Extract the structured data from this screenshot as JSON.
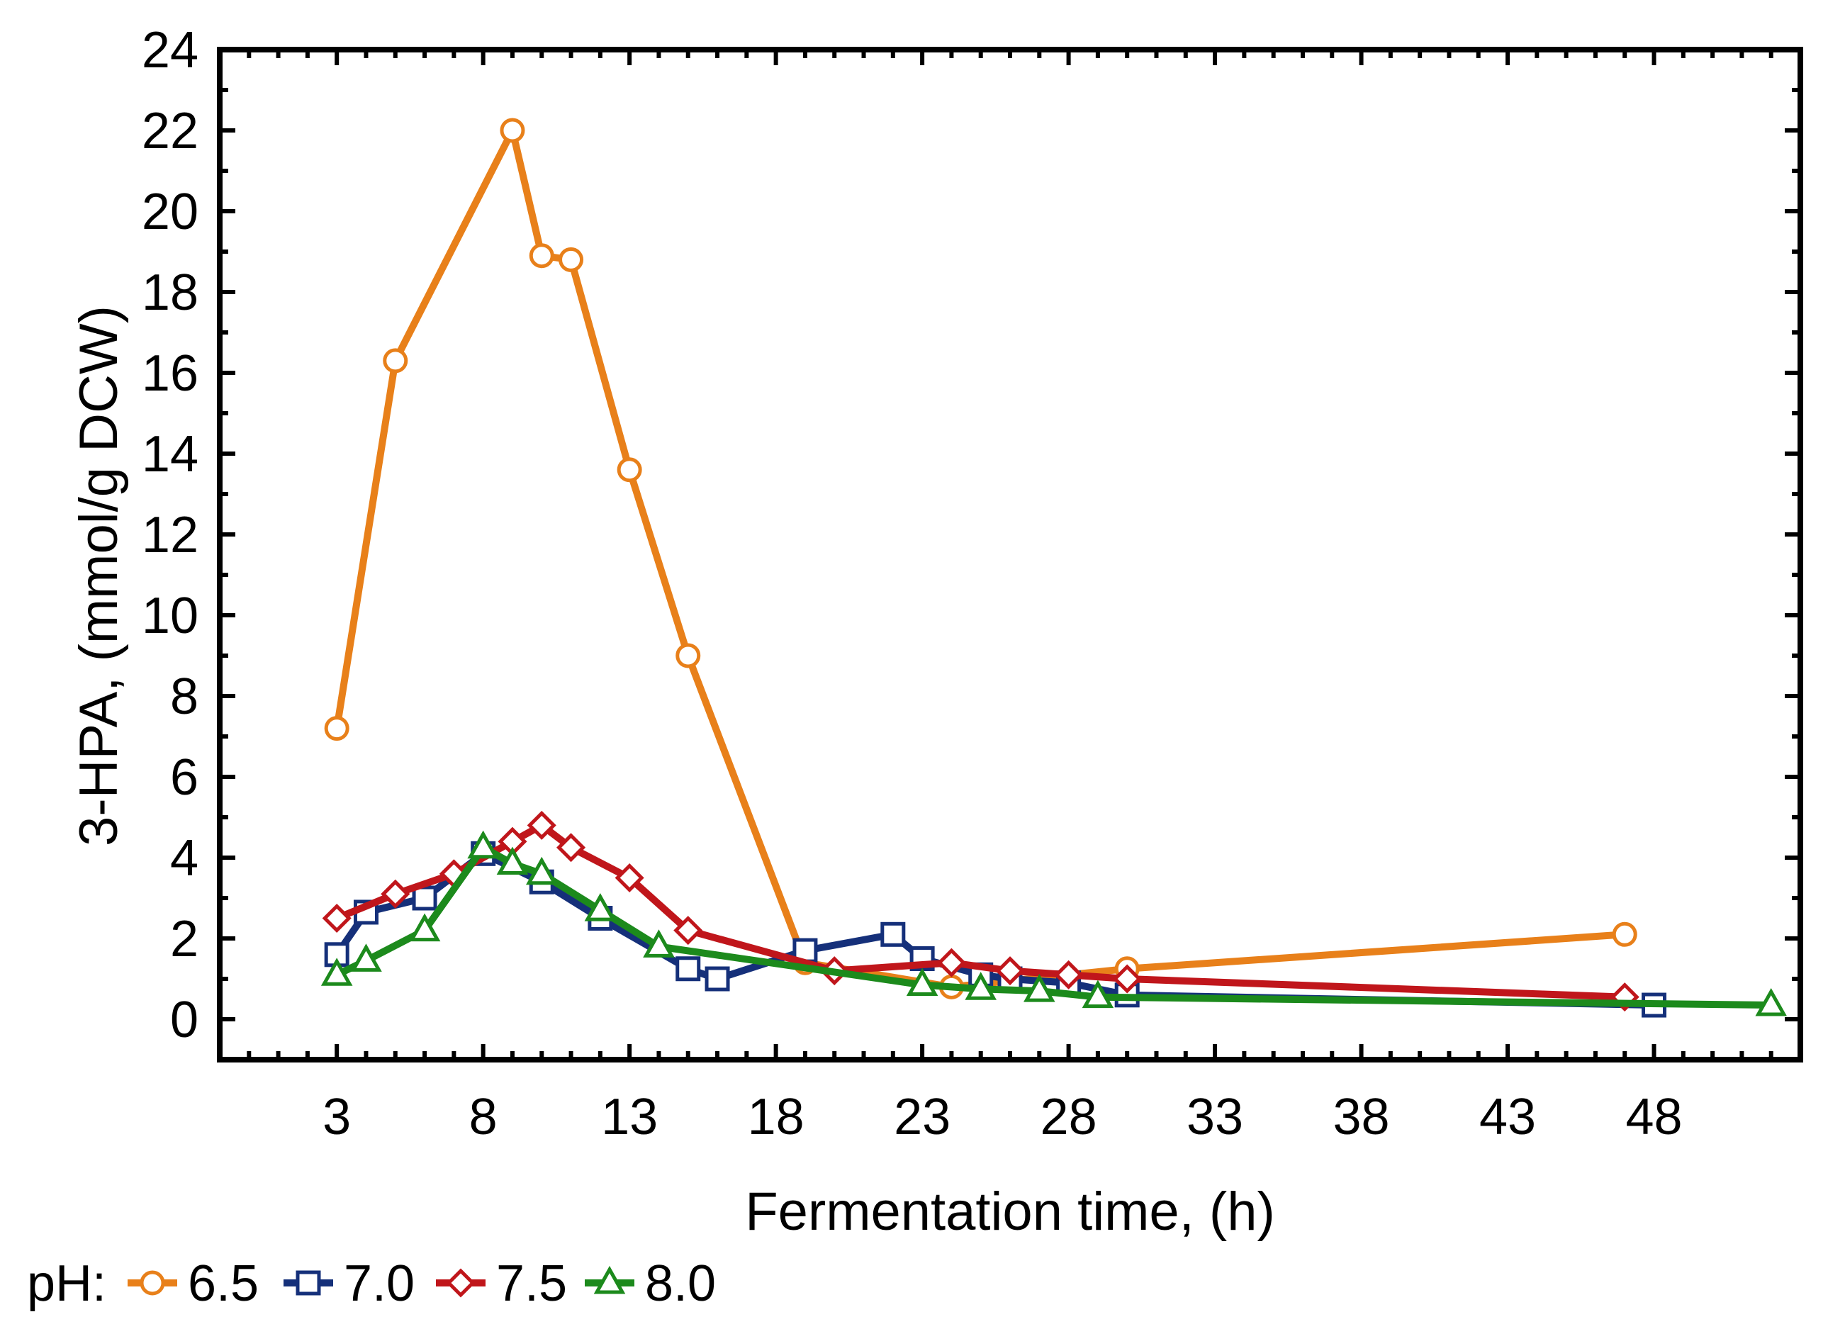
{
  "chart_data": {
    "type": "line",
    "title": "",
    "xlabel": "Fermentation time, (h)",
    "ylabel": "3-HPA, (mmol/g DCW)",
    "xlim": [
      -1,
      53
    ],
    "ylim": [
      -1,
      24
    ],
    "xticks": [
      3,
      8,
      13,
      18,
      23,
      28,
      33,
      38,
      43,
      48
    ],
    "yticks": [
      0,
      2,
      4,
      6,
      8,
      10,
      12,
      14,
      16,
      18,
      20,
      22,
      24
    ],
    "legend_title": "pH:",
    "legend_position": "bottom-left",
    "series": [
      {
        "name": "6.5",
        "color": "#E8801A",
        "marker": "circle",
        "x": [
          3,
          5,
          9,
          10,
          11,
          13,
          15,
          19,
          24,
          30,
          47
        ],
        "y": [
          7.2,
          16.3,
          22.0,
          18.9,
          18.8,
          13.6,
          9.0,
          1.4,
          0.8,
          1.25,
          2.1
        ]
      },
      {
        "name": "7.0",
        "color": "#15307A",
        "marker": "square",
        "x": [
          3,
          4,
          6,
          8,
          10,
          12,
          15,
          16,
          19,
          22,
          23,
          25,
          26,
          28,
          30,
          48
        ],
        "y": [
          1.6,
          2.65,
          3.0,
          4.1,
          3.4,
          2.5,
          1.25,
          1.0,
          1.7,
          2.1,
          1.5,
          1.1,
          1.0,
          0.9,
          0.6,
          0.35
        ]
      },
      {
        "name": "7.5",
        "color": "#C0161B",
        "marker": "diamond",
        "x": [
          3,
          5,
          7,
          9,
          10,
          11,
          13,
          15,
          20,
          24,
          26,
          28,
          30,
          47
        ],
        "y": [
          2.5,
          3.1,
          3.6,
          4.4,
          4.8,
          4.25,
          3.5,
          2.2,
          1.2,
          1.4,
          1.2,
          1.1,
          1.0,
          0.55
        ]
      },
      {
        "name": "8.0",
        "color": "#1C8A1C",
        "marker": "triangle",
        "x": [
          3,
          4,
          6,
          8,
          9,
          10,
          12,
          14,
          23,
          25,
          27,
          29,
          52
        ],
        "y": [
          1.1,
          1.45,
          2.2,
          4.25,
          3.85,
          3.6,
          2.7,
          1.8,
          0.85,
          0.75,
          0.7,
          0.55,
          0.35
        ]
      }
    ]
  }
}
